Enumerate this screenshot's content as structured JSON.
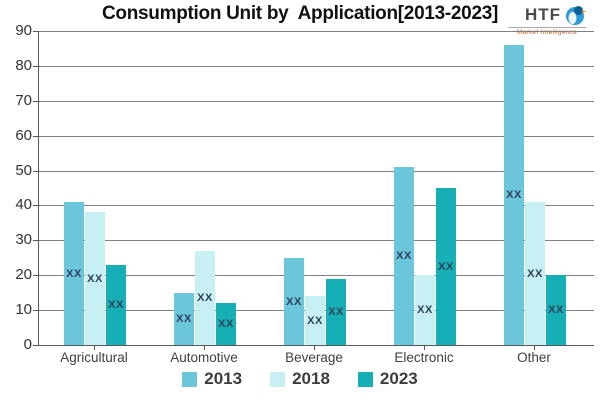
{
  "title": "Consumption Unit by  Application[2013-2023]",
  "logo": {
    "brand": "HTF",
    "tagline": "Market Intelligence"
  },
  "chart_data": {
    "type": "bar",
    "title": "Consumption Unit by  Application[2013-2023]",
    "categories": [
      "Agricultural",
      "Automotive",
      "Beverage",
      "Electronic",
      "Other"
    ],
    "series": [
      {
        "name": "2013",
        "color": "#6bc6dc",
        "values": [
          41,
          15,
          25,
          51,
          86
        ]
      },
      {
        "name": "2018",
        "color": "#c7f0f4",
        "values": [
          38,
          27,
          14,
          20,
          41
        ]
      },
      {
        "name": "2023",
        "color": "#15afb5",
        "values": [
          23,
          12,
          19,
          45,
          20
        ]
      }
    ],
    "bar_label": "XX",
    "xlabel": "",
    "ylabel": "",
    "ylim": [
      0,
      90
    ],
    "ytick_step": 10,
    "grid": true,
    "legend_position": "bottom"
  },
  "colors": {
    "grid": "#808080",
    "axis": "#595959",
    "bar_label_text": "#2f4057",
    "tick_label_text": "#3f3f3f",
    "title_text": "#111111",
    "legend_text": "#3d3d3d",
    "logo_icon_blue": "#2e9bd6",
    "logo_tagline_orange": "#c2672f"
  }
}
